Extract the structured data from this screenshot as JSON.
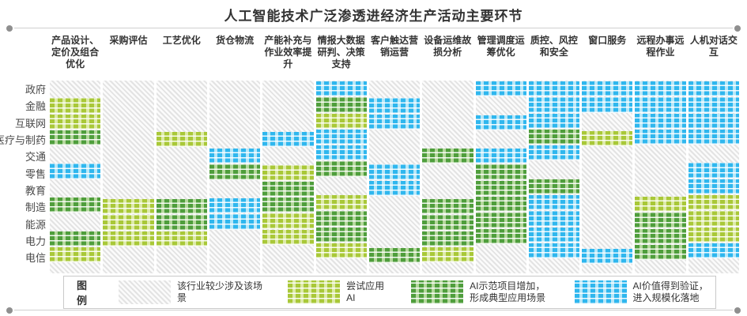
{
  "title": "人工智能技术广泛渗透进经济生产活动主要环节",
  "legend": {
    "title": "图例",
    "items": [
      {
        "key": "none",
        "label": "该行业较少涉及该场景"
      },
      {
        "key": "try",
        "label": "尝试应用AI"
      },
      {
        "key": "demo",
        "label": "AI示范项目增加，形成典型应用场景"
      },
      {
        "key": "scale",
        "label": "AI价值得到验证，进入规模化落地"
      }
    ]
  },
  "colors": {
    "hatch_line": "#e3e3e3",
    "try_green": "#a9c838",
    "demo_green": "#4f9e3c",
    "scale_blue": "#2fb7ee"
  },
  "chart_data": {
    "type": "heatmap",
    "title": "人工智能技术广泛渗透进经济生产活动主要环节",
    "rows": [
      "政府",
      "金融",
      "互联网",
      "医疗与制药",
      "交通",
      "零售",
      "教育",
      "制造",
      "能源",
      "电力",
      "电信"
    ],
    "columns": [
      "产品设计、定价及组合优化",
      "采购评估",
      "工艺优化",
      "货仓物流",
      "产能补充与作业效率提升",
      "情报大数据研判、决策支持",
      "客户触达营销运营",
      "设备运维故损分析",
      "管理调度运筹优化",
      "质控、风控和安全",
      "窗口服务",
      "远程办事远程作业",
      "人机对话交互"
    ],
    "level_labels": {
      "0": "该行业较少涉及该场景",
      "1": "尝试应用AI",
      "2": "AI示范项目增加，形成典型应用场景",
      "3": "AI价值得到验证，进入规模化落地"
    },
    "values": [
      [
        0,
        0,
        0,
        0,
        0,
        3,
        0,
        0,
        3,
        3,
        3,
        3,
        3
      ],
      [
        1,
        0,
        0,
        0,
        0,
        2,
        3,
        0,
        0,
        3,
        3,
        3,
        3
      ],
      [
        1,
        0,
        0,
        0,
        0,
        1,
        3,
        0,
        3,
        3,
        0,
        3,
        3
      ],
      [
        2,
        0,
        1,
        0,
        3,
        3,
        0,
        0,
        0,
        2,
        1,
        3,
        3
      ],
      [
        0,
        0,
        0,
        3,
        0,
        3,
        0,
        2,
        3,
        3,
        0,
        0,
        0
      ],
      [
        3,
        0,
        0,
        2,
        1,
        2,
        3,
        0,
        2,
        0,
        0,
        0,
        3
      ],
      [
        0,
        0,
        0,
        0,
        2,
        0,
        3,
        0,
        2,
        2,
        0,
        0,
        3
      ],
      [
        2,
        1,
        2,
        3,
        2,
        1,
        0,
        2,
        2,
        3,
        0,
        1,
        1
      ],
      [
        0,
        1,
        2,
        3,
        1,
        2,
        0,
        2,
        2,
        3,
        0,
        2,
        1
      ],
      [
        2,
        1,
        1,
        0,
        1,
        2,
        0,
        2,
        2,
        3,
        0,
        2,
        1
      ],
      [
        1,
        0,
        0,
        0,
        0,
        1,
        2,
        1,
        0,
        3,
        3,
        2,
        3
      ]
    ]
  }
}
